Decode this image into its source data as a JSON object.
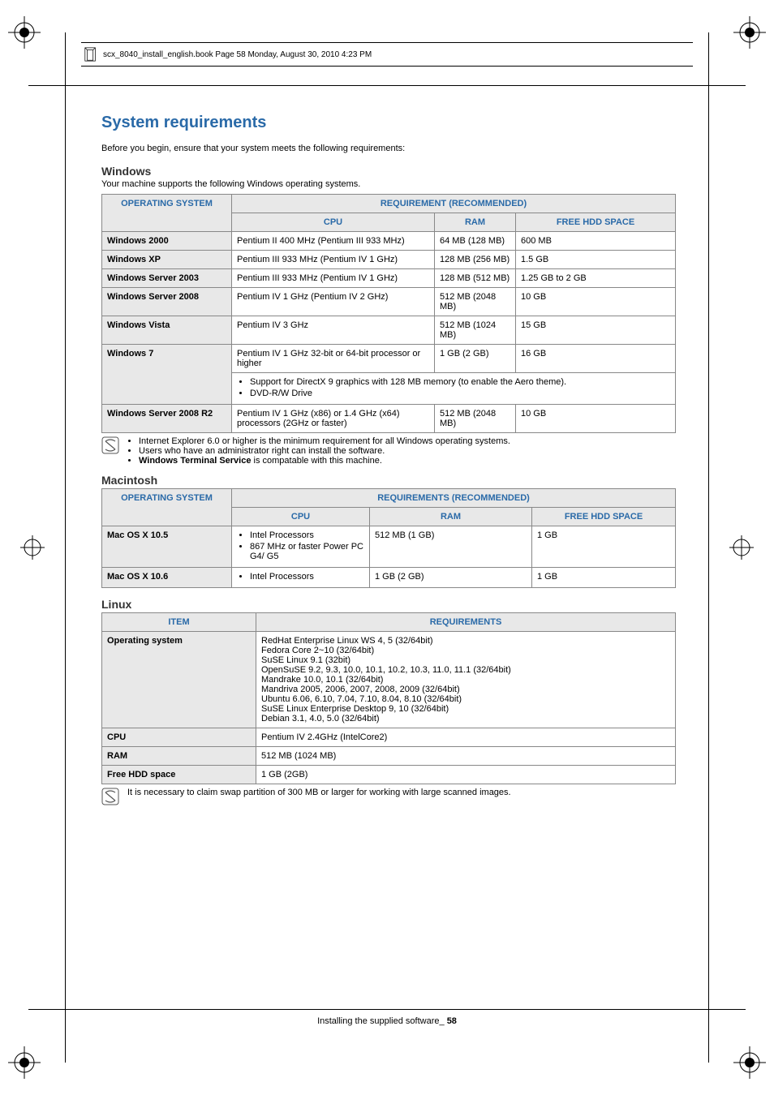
{
  "colors": {
    "heading_blue": "#2a6aa8",
    "table_header_bg": "#e8e8e8",
    "border": "#888888",
    "text": "#000000"
  },
  "header_running": "scx_8040_install_english.book  Page 58  Monday, August 30, 2010  4:23 PM",
  "section_title": "System requirements",
  "intro": "Before you begin, ensure that your system meets the following requirements:",
  "windows": {
    "heading": "Windows",
    "sub": "Your machine supports the following Windows operating systems.",
    "headers": {
      "os": "OPERATING SYSTEM",
      "req": "REQUIREMENT (RECOMMENDED)",
      "cpu": "CPU",
      "ram": "RAM",
      "hdd": "FREE HDD SPACE"
    },
    "rows": [
      {
        "os": "Windows 2000",
        "cpu": "Pentium II 400 MHz (Pentium III 933 MHz)",
        "ram": "64 MB (128 MB)",
        "hdd": "600 MB"
      },
      {
        "os": "Windows XP",
        "cpu": "Pentium III 933 MHz (Pentium IV 1 GHz)",
        "ram": "128 MB (256 MB)",
        "hdd": "1.5 GB"
      },
      {
        "os": "Windows Server 2003",
        "cpu": "Pentium III 933 MHz (Pentium IV 1 GHz)",
        "ram": "128 MB (512 MB)",
        "hdd": "1.25 GB to 2 GB"
      },
      {
        "os": "Windows Server 2008",
        "cpu": "Pentium IV 1 GHz (Pentium IV 2 GHz)",
        "ram": "512 MB (2048 MB)",
        "hdd": "10 GB"
      },
      {
        "os": "Windows Vista",
        "cpu": "Pentium IV 3 GHz",
        "ram": "512 MB (1024 MB)",
        "hdd": "15 GB"
      },
      {
        "os": "Windows 7",
        "cpu": "Pentium IV 1 GHz 32-bit or 64-bit processor or higher",
        "ram": "1 GB (2 GB)",
        "hdd": "16 GB"
      }
    ],
    "win7_notes": [
      "Support for DirectX 9 graphics with 128 MB memory (to enable the Aero theme).",
      "DVD-R/W Drive"
    ],
    "last_row": {
      "os": "Windows Server 2008 R2",
      "cpu": "Pentium IV 1 GHz (x86) or 1.4 GHz (x64) processors (2GHz or faster)",
      "ram": "512 MB (2048 MB)",
      "hdd": "10 GB"
    },
    "footnotes": [
      "Internet Explorer 6.0 or higher is the minimum requirement for all Windows operating systems.",
      "Users who have an administrator right can install the software."
    ],
    "footnote_bold_prefix": "Windows Terminal Service",
    "footnote_rest": " is compatable with this machine."
  },
  "mac": {
    "heading": "Macintosh",
    "headers": {
      "os": "OPERATING SYSTEM",
      "req": "REQUIREMENTS (RECOMMENDED)",
      "cpu": "CPU",
      "ram": "RAM",
      "hdd": "FREE HDD SPACE"
    },
    "rows": [
      {
        "os": "Mac OS X 10.5",
        "cpu": [
          "Intel Processors",
          "867 MHz or faster Power PC G4/ G5"
        ],
        "ram": "512 MB (1 GB)",
        "hdd": "1 GB"
      },
      {
        "os": "Mac OS X 10.6",
        "cpu": [
          "Intel Processors"
        ],
        "ram": "1 GB (2 GB)",
        "hdd": "1 GB"
      }
    ]
  },
  "linux": {
    "heading": "Linux",
    "headers": {
      "item": "ITEM",
      "req": "REQUIREMENTS"
    },
    "rows": [
      {
        "item": "Operating system",
        "req": "RedHat Enterprise Linux WS 4, 5 (32/64bit)\nFedora Core 2~10 (32/64bit)\nSuSE Linux 9.1 (32bit)\nOpenSuSE 9.2, 9.3, 10.0, 10.1, 10.2, 10.3, 11.0, 11.1 (32/64bit)\nMandrake 10.0, 10.1 (32/64bit)\nMandriva 2005, 2006, 2007, 2008, 2009 (32/64bit)\nUbuntu 6.06, 6.10, 7.04, 7.10, 8.04, 8.10 (32/64bit)\nSuSE Linux Enterprise Desktop 9, 10 (32/64bit)\nDebian 3.1, 4.0, 5.0 (32/64bit)"
      },
      {
        "item": "CPU",
        "req": "Pentium IV 2.4GHz (IntelCore2)"
      },
      {
        "item": "RAM",
        "req": "512 MB (1024 MB)"
      },
      {
        "item": "Free HDD space",
        "req": "1 GB (2GB)"
      }
    ],
    "footnote": "It is necessary to claim swap partition of 300 MB or larger for working with large scanned images."
  },
  "footer": {
    "text": "Installing the supplied software",
    "sep": "_ ",
    "page": "58"
  }
}
